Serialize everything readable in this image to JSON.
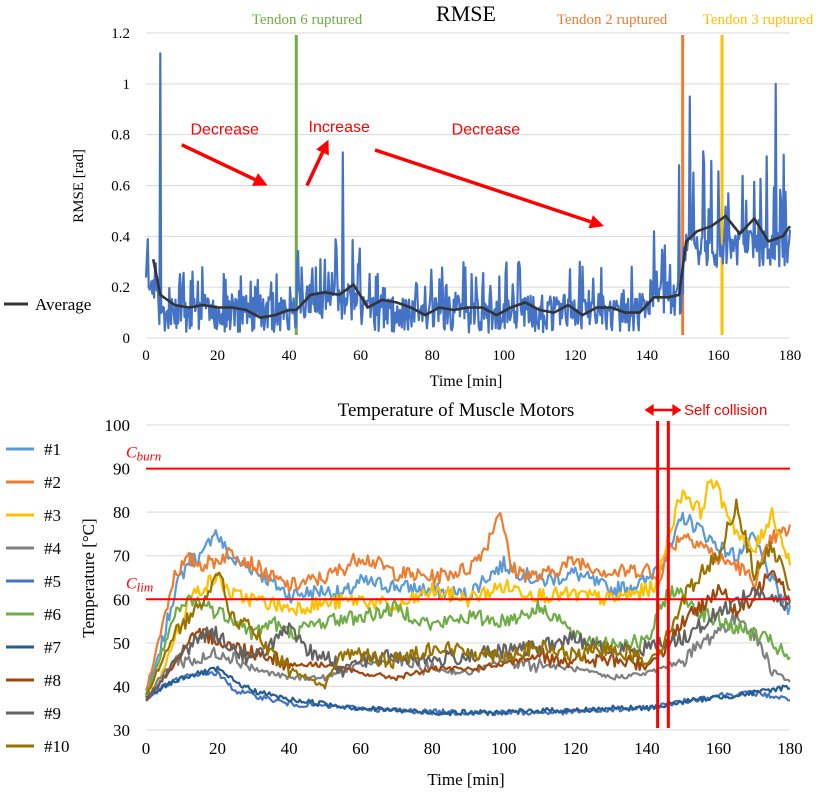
{
  "chart_data": [
    {
      "type": "line",
      "title": "RMSE",
      "xlabel": "Time [min]",
      "ylabel": "RMSE [rad]",
      "xlim": [
        0,
        180
      ],
      "ylim": [
        0,
        1.2
      ],
      "xticks": [
        0,
        20,
        40,
        60,
        80,
        100,
        120,
        140,
        160,
        180
      ],
      "yticks": [
        0,
        0.2,
        0.4,
        0.6,
        0.8,
        1.0,
        1.2
      ],
      "ytick_labels": [
        "0",
        "0.2",
        "0.4",
        "0.6",
        "0.8",
        "1",
        "1.2"
      ],
      "legend": [
        {
          "name": "Average",
          "color": "#333333"
        }
      ],
      "raw_series": {
        "name": "RMSE",
        "color": "#4472C4",
        "segments": [
          {
            "t0": 0,
            "t1": 3,
            "base": 0.22,
            "amp": 0.18
          },
          {
            "t0": 3,
            "t1": 42,
            "base": 0.12,
            "amp": 0.16
          },
          {
            "t0": 42,
            "t1": 60,
            "base": 0.17,
            "amp": 0.22
          },
          {
            "t0": 60,
            "t1": 140,
            "base": 0.12,
            "amp": 0.18
          },
          {
            "t0": 140,
            "t1": 150,
            "base": 0.18,
            "amp": 0.24
          },
          {
            "t0": 150,
            "t1": 180,
            "base": 0.38,
            "amp": 0.36
          }
        ],
        "peaks": [
          [
            4,
            1.12
          ],
          [
            55,
            0.73
          ],
          [
            149,
            0.68
          ],
          [
            152,
            0.95
          ],
          [
            176,
            1.0
          ]
        ]
      },
      "average": {
        "x": [
          2,
          4,
          8,
          12,
          16,
          20,
          24,
          28,
          32,
          36,
          40,
          42,
          46,
          50,
          54,
          58,
          62,
          66,
          70,
          74,
          78,
          82,
          86,
          90,
          94,
          98,
          102,
          106,
          110,
          114,
          118,
          122,
          126,
          130,
          134,
          138,
          142,
          146,
          149,
          151,
          154,
          158,
          162,
          166,
          170,
          174,
          178,
          180
        ],
        "y": [
          0.31,
          0.17,
          0.13,
          0.12,
          0.13,
          0.12,
          0.12,
          0.11,
          0.08,
          0.09,
          0.11,
          0.11,
          0.17,
          0.18,
          0.17,
          0.21,
          0.12,
          0.15,
          0.14,
          0.12,
          0.09,
          0.12,
          0.11,
          0.12,
          0.12,
          0.09,
          0.12,
          0.14,
          0.11,
          0.1,
          0.13,
          0.09,
          0.12,
          0.12,
          0.1,
          0.1,
          0.16,
          0.16,
          0.17,
          0.38,
          0.42,
          0.44,
          0.48,
          0.41,
          0.47,
          0.38,
          0.4,
          0.44
        ]
      },
      "events": [
        {
          "label": "Tendon 6 ruptured",
          "x": 42,
          "color": "#70AD47"
        },
        {
          "label": "Tendon 2 ruptured",
          "x": 150,
          "color": "#ED7D31"
        },
        {
          "label": "Tendon 3 ruptured",
          "x": 161,
          "color": "#FFC000"
        }
      ],
      "annotations": [
        {
          "text": "Decrease",
          "from": [
            10,
            0.76
          ],
          "to": [
            34,
            0.6
          ],
          "label_at": [
            22,
            0.82
          ]
        },
        {
          "text": "Increase",
          "from": [
            45,
            0.6
          ],
          "to": [
            51,
            0.78
          ],
          "label_at": [
            54,
            0.83
          ]
        },
        {
          "text": "Decrease",
          "from": [
            64,
            0.74
          ],
          "to": [
            128,
            0.44
          ],
          "label_at": [
            95,
            0.82
          ]
        }
      ]
    },
    {
      "type": "line",
      "title": "Temperature of Muscle Motors",
      "xlabel": "Time [min]",
      "ylabel": "Temperature [°C]",
      "xlim": [
        0,
        180
      ],
      "ylim": [
        30,
        100
      ],
      "xticks": [
        0,
        20,
        40,
        60,
        80,
        100,
        120,
        140,
        160,
        180
      ],
      "yticks": [
        30,
        40,
        50,
        60,
        70,
        80,
        90,
        100
      ],
      "thresholds": [
        {
          "name": "C_burn",
          "base": "C",
          "sub": "burn",
          "value": 90
        },
        {
          "name": "C_lim",
          "base": "C",
          "sub": "lim",
          "value": 60
        }
      ],
      "self_collision": {
        "label": "Self collision",
        "x0": 143,
        "x1": 146
      },
      "series": [
        {
          "name": "#1",
          "color": "#5B9BD5",
          "x": [
            0,
            4,
            8,
            12,
            16,
            19,
            24,
            30,
            35,
            40,
            50,
            55,
            60,
            70,
            80,
            90,
            95,
            100,
            110,
            120,
            130,
            140,
            143,
            146,
            150,
            155,
            160,
            165,
            170,
            175,
            180
          ],
          "y": [
            38,
            48,
            62,
            69,
            70,
            76,
            69,
            67,
            64,
            61,
            62,
            61,
            64,
            63,
            62,
            61,
            65,
            68,
            64,
            66,
            62,
            64,
            68,
            70,
            79,
            76,
            72,
            70,
            74,
            64,
            57
          ]
        },
        {
          "name": "#2",
          "color": "#ED7D31",
          "x": [
            0,
            4,
            8,
            12,
            16,
            20,
            24,
            30,
            35,
            40,
            50,
            55,
            60,
            70,
            80,
            90,
            95,
            99,
            102,
            110,
            120,
            130,
            140,
            143,
            146,
            150,
            155,
            160,
            165,
            170,
            175,
            180
          ],
          "y": [
            39,
            52,
            66,
            69,
            68,
            69,
            71,
            68,
            65,
            63,
            65,
            67,
            70,
            66,
            65,
            67,
            72,
            81,
            67,
            65,
            69,
            66,
            67,
            64,
            71,
            75,
            73,
            69,
            68,
            64,
            74,
            76
          ]
        },
        {
          "name": "#3",
          "color": "#FFC000",
          "x": [
            0,
            4,
            8,
            12,
            16,
            20,
            24,
            30,
            35,
            40,
            50,
            60,
            70,
            80,
            90,
            100,
            110,
            120,
            130,
            140,
            143,
            146,
            150,
            155,
            158,
            162,
            166,
            170,
            175,
            180
          ],
          "y": [
            38,
            42,
            51,
            60,
            63,
            65,
            61,
            60,
            59,
            58,
            59,
            60,
            58,
            62,
            60,
            63,
            61,
            61,
            60,
            62,
            64,
            75,
            85,
            80,
            88,
            81,
            74,
            71,
            80,
            68
          ]
        },
        {
          "name": "#4",
          "color": "#808080",
          "x": [
            0,
            4,
            8,
            12,
            16,
            20,
            24,
            30,
            35,
            40,
            50,
            60,
            70,
            80,
            90,
            100,
            110,
            120,
            130,
            140,
            150,
            160,
            166,
            170,
            175,
            180
          ],
          "y": [
            37,
            42,
            46,
            46,
            46,
            48,
            47,
            44,
            43,
            42,
            42,
            45,
            46,
            44,
            43,
            46,
            45,
            44,
            42,
            43,
            46,
            53,
            56,
            52,
            44,
            41
          ]
        },
        {
          "name": "#5",
          "color": "#4472C4",
          "x": [
            0,
            5,
            10,
            15,
            20,
            25,
            30,
            40,
            50,
            60,
            70,
            80,
            90,
            100,
            110,
            120,
            130,
            140,
            150,
            160,
            170,
            180
          ],
          "y": [
            37,
            40,
            42,
            43,
            43,
            39,
            38,
            36,
            35.5,
            35,
            34.5,
            34.2,
            34,
            34,
            34,
            34.2,
            34.6,
            35,
            36.5,
            38,
            38.5,
            37
          ]
        },
        {
          "name": "#6",
          "color": "#70AD47",
          "x": [
            0,
            4,
            8,
            12,
            16,
            20,
            24,
            30,
            35,
            40,
            50,
            60,
            70,
            80,
            90,
            100,
            110,
            115,
            120,
            130,
            140,
            146,
            150,
            155,
            160,
            170,
            175,
            180
          ],
          "y": [
            38,
            46,
            56,
            60,
            59,
            57,
            56,
            52,
            55,
            52,
            55,
            56,
            58,
            54,
            56,
            55,
            58,
            56,
            51,
            50,
            50,
            62,
            61,
            57,
            55,
            52,
            50,
            46
          ]
        },
        {
          "name": "#7",
          "color": "#255E91",
          "x": [
            0,
            5,
            10,
            15,
            20,
            25,
            30,
            40,
            50,
            60,
            70,
            80,
            90,
            100,
            110,
            120,
            130,
            140,
            150,
            160,
            170,
            180
          ],
          "y": [
            37,
            40,
            42,
            43,
            44,
            41,
            39,
            37,
            36,
            35,
            34.5,
            34,
            34,
            34,
            34.5,
            34.5,
            35,
            35,
            36.5,
            37.5,
            38.5,
            40
          ]
        },
        {
          "name": "#8",
          "color": "#9E480E",
          "x": [
            0,
            4,
            8,
            12,
            16,
            20,
            24,
            30,
            35,
            40,
            50,
            60,
            70,
            80,
            90,
            100,
            110,
            120,
            130,
            140,
            143,
            146,
            150,
            155,
            160,
            165,
            170,
            175,
            180
          ],
          "y": [
            37,
            41,
            45,
            50,
            52,
            51,
            49,
            48,
            47,
            45,
            45,
            43,
            42,
            44,
            44,
            45,
            47,
            46,
            46,
            45,
            47,
            50,
            55,
            58,
            63,
            57,
            60,
            68,
            60
          ]
        },
        {
          "name": "#9",
          "color": "#636363",
          "x": [
            0,
            4,
            8,
            12,
            16,
            20,
            24,
            30,
            35,
            40,
            45,
            50,
            55,
            60,
            70,
            80,
            90,
            100,
            110,
            120,
            130,
            140,
            150,
            160,
            170,
            180
          ],
          "y": [
            37,
            41,
            46,
            49,
            52,
            52,
            49,
            46,
            50,
            53,
            48,
            47,
            44,
            46,
            47,
            46,
            47,
            48,
            49,
            51,
            48,
            49,
            51,
            57,
            62,
            58
          ]
        },
        {
          "name": "#10",
          "color": "#997300",
          "x": [
            0,
            4,
            8,
            12,
            16,
            20,
            24,
            30,
            35,
            40,
            50,
            54,
            58,
            65,
            70,
            80,
            90,
            100,
            110,
            120,
            130,
            140,
            145,
            150,
            155,
            160,
            165,
            170,
            175,
            180
          ],
          "y": [
            38,
            45,
            52,
            56,
            60,
            67,
            56,
            53,
            47,
            44,
            40,
            47,
            48,
            46,
            46,
            49,
            48,
            47,
            49,
            47,
            49,
            46,
            50,
            60,
            66,
            70,
            82,
            66,
            72,
            63
          ]
        }
      ]
    }
  ]
}
